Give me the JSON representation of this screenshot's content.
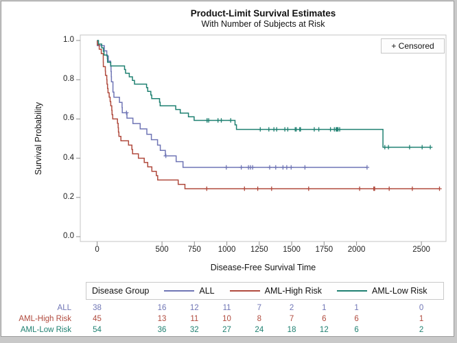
{
  "chart_data": {
    "type": "line",
    "subtype": "kaplan-meier-step-survival",
    "title": "Product-Limit Survival Estimates",
    "subtitle": "With Number of Subjects at Risk",
    "xlabel": "Disease-Free Survival Time",
    "ylabel": "Survival Probability",
    "censored_label": "+ Censored",
    "legend_title": "Disease Group",
    "legend_position": "bottom",
    "grid": false,
    "xlim": [
      -130,
      2690
    ],
    "ylim": [
      -0.0245,
      1.028
    ],
    "xticks": [
      0,
      500,
      750,
      1000,
      1250,
      1500,
      1750,
      2000,
      2500
    ],
    "yticks": [
      0.0,
      0.2,
      0.4,
      0.6,
      0.8,
      1.0
    ],
    "frame_color": "#c4c4c4",
    "tick_color": "#8f8f8f",
    "series": [
      {
        "name": "ALL",
        "color": "#6f75b5",
        "start": [
          0,
          1.0
        ],
        "end_time": 2081,
        "steps": [
          [
            1,
            0.9737
          ],
          [
            55,
            0.9474
          ],
          [
            74,
            0.9211
          ],
          [
            86,
            0.8947
          ],
          [
            104,
            0.8684
          ],
          [
            107,
            0.8421
          ],
          [
            109,
            0.8158
          ],
          [
            110,
            0.7895
          ],
          [
            122,
            0.7368
          ],
          [
            129,
            0.7105
          ],
          [
            172,
            0.6842
          ],
          [
            192,
            0.6579
          ],
          [
            194,
            0.6316
          ],
          [
            230,
            0.6041
          ],
          [
            276,
            0.5767
          ],
          [
            332,
            0.5492
          ],
          [
            383,
            0.5217
          ],
          [
            418,
            0.4943
          ],
          [
            466,
            0.4668
          ],
          [
            487,
            0.4394
          ],
          [
            526,
            0.4119
          ],
          [
            609,
            0.3825
          ],
          [
            662,
            0.3531
          ]
        ],
        "censors": [
          [
            226,
            0.6316
          ],
          [
            530,
            0.4119
          ],
          [
            996,
            0.3531
          ],
          [
            1111,
            0.3531
          ],
          [
            1167,
            0.3531
          ],
          [
            1182,
            0.3531
          ],
          [
            1199,
            0.3531
          ],
          [
            1330,
            0.3531
          ],
          [
            1377,
            0.3531
          ],
          [
            1433,
            0.3531
          ],
          [
            1462,
            0.3531
          ],
          [
            1496,
            0.3531
          ],
          [
            1602,
            0.3531
          ],
          [
            2081,
            0.3531
          ]
        ]
      },
      {
        "name": "AML-High Risk",
        "color": "#b04a3d",
        "start": [
          0,
          1.0
        ],
        "end_time": 2640,
        "steps": [
          [
            2,
            0.9778
          ],
          [
            16,
            0.9556
          ],
          [
            32,
            0.9333
          ],
          [
            47,
            0.8889
          ],
          [
            48,
            0.8667
          ],
          [
            63,
            0.8444
          ],
          [
            64,
            0.8222
          ],
          [
            74,
            0.8
          ],
          [
            76,
            0.7778
          ],
          [
            80,
            0.7556
          ],
          [
            84,
            0.7333
          ],
          [
            93,
            0.7111
          ],
          [
            100,
            0.6889
          ],
          [
            105,
            0.6667
          ],
          [
            113,
            0.6444
          ],
          [
            115,
            0.6222
          ],
          [
            120,
            0.6
          ],
          [
            157,
            0.5778
          ],
          [
            162,
            0.5556
          ],
          [
            164,
            0.5333
          ],
          [
            168,
            0.5111
          ],
          [
            183,
            0.4889
          ],
          [
            242,
            0.4667
          ],
          [
            268,
            0.4444
          ],
          [
            273,
            0.4222
          ],
          [
            318,
            0.4
          ],
          [
            363,
            0.3778
          ],
          [
            390,
            0.3556
          ],
          [
            422,
            0.3333
          ],
          [
            456,
            0.3111
          ],
          [
            467,
            0.2889
          ],
          [
            625,
            0.2667
          ],
          [
            677,
            0.2444
          ]
        ],
        "censors": [
          [
            845,
            0.2444
          ],
          [
            1136,
            0.2444
          ],
          [
            1238,
            0.2444
          ],
          [
            1345,
            0.2444
          ],
          [
            1631,
            0.2444
          ],
          [
            2024,
            0.2444
          ],
          [
            2133,
            0.2444
          ],
          [
            2140,
            0.2444
          ],
          [
            2252,
            0.2444
          ],
          [
            2430,
            0.2444
          ],
          [
            2640,
            0.2444
          ]
        ]
      },
      {
        "name": "AML-Low Risk",
        "color": "#1e8071",
        "start": [
          0,
          1.0
        ],
        "end_time": 2569,
        "steps": [
          [
            10,
            0.9815
          ],
          [
            35,
            0.963
          ],
          [
            48,
            0.9444
          ],
          [
            53,
            0.9259
          ],
          [
            79,
            0.9074
          ],
          [
            80,
            0.8889
          ],
          [
            105,
            0.8704
          ],
          [
            211,
            0.8519
          ],
          [
            219,
            0.8333
          ],
          [
            248,
            0.8148
          ],
          [
            272,
            0.7963
          ],
          [
            288,
            0.7778
          ],
          [
            381,
            0.7593
          ],
          [
            390,
            0.7407
          ],
          [
            414,
            0.7222
          ],
          [
            421,
            0.7037
          ],
          [
            481,
            0.6852
          ],
          [
            486,
            0.6667
          ],
          [
            606,
            0.6481
          ],
          [
            641,
            0.6296
          ],
          [
            704,
            0.6111
          ],
          [
            748,
            0.5926
          ],
          [
            1063,
            0.5698
          ],
          [
            1074,
            0.547
          ],
          [
            2204,
            0.4558
          ]
        ],
        "censors": [
          [
            847,
            0.5926
          ],
          [
            848,
            0.5926
          ],
          [
            860,
            0.5926
          ],
          [
            932,
            0.5926
          ],
          [
            957,
            0.5926
          ],
          [
            1030,
            0.5926
          ],
          [
            1258,
            0.547
          ],
          [
            1324,
            0.547
          ],
          [
            1363,
            0.547
          ],
          [
            1384,
            0.547
          ],
          [
            1447,
            0.547
          ],
          [
            1470,
            0.547
          ],
          [
            1527,
            0.547
          ],
          [
            1535,
            0.547
          ],
          [
            1562,
            0.547
          ],
          [
            1568,
            0.547
          ],
          [
            1674,
            0.547
          ],
          [
            1709,
            0.547
          ],
          [
            1799,
            0.547
          ],
          [
            1829,
            0.547
          ],
          [
            1843,
            0.547
          ],
          [
            1850,
            0.547
          ],
          [
            1857,
            0.547
          ],
          [
            1870,
            0.547
          ],
          [
            2218,
            0.4558
          ],
          [
            2246,
            0.4558
          ],
          [
            2409,
            0.4558
          ],
          [
            2506,
            0.4558
          ],
          [
            2569,
            0.4558
          ]
        ]
      }
    ],
    "at_risk": {
      "times": [
        0,
        500,
        750,
        1000,
        1250,
        1500,
        1750,
        2000,
        2500
      ],
      "rows": [
        {
          "name": "ALL",
          "color": "#6f75b5",
          "values": [
            38,
            16,
            12,
            11,
            7,
            2,
            1,
            1,
            0
          ]
        },
        {
          "name": "AML-High Risk",
          "color": "#b04a3d",
          "values": [
            45,
            13,
            11,
            10,
            8,
            7,
            6,
            6,
            1
          ]
        },
        {
          "name": "AML-Low Risk",
          "color": "#1e8071",
          "values": [
            54,
            36,
            32,
            27,
            24,
            18,
            12,
            6,
            2
          ]
        }
      ]
    }
  }
}
